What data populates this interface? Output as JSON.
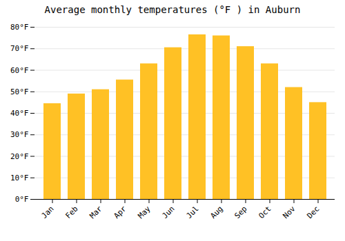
{
  "chart_data": {
    "type": "bar",
    "title": "Average monthly temperatures (°F ) in Auburn",
    "categories": [
      "Jan",
      "Feb",
      "Mar",
      "Apr",
      "May",
      "Jun",
      "Jul",
      "Aug",
      "Sep",
      "Oct",
      "Nov",
      "Dec"
    ],
    "values": [
      44.5,
      49,
      51,
      55.5,
      63,
      70.5,
      76.5,
      76,
      71,
      63,
      52,
      45
    ],
    "color": "#FFC125",
    "ylim": [
      0,
      80
    ],
    "yticks": [
      {
        "value": 0,
        "label": "0°F"
      },
      {
        "value": 10,
        "label": "10°F"
      },
      {
        "value": 20,
        "label": "20°F"
      },
      {
        "value": 30,
        "label": "30°F"
      },
      {
        "value": 40,
        "label": "40°F"
      },
      {
        "value": 50,
        "label": "50°F"
      },
      {
        "value": 60,
        "label": "60°F"
      },
      {
        "value": 70,
        "label": "70°F"
      },
      {
        "value": 80,
        "label": "80°F"
      }
    ],
    "grid": true
  }
}
